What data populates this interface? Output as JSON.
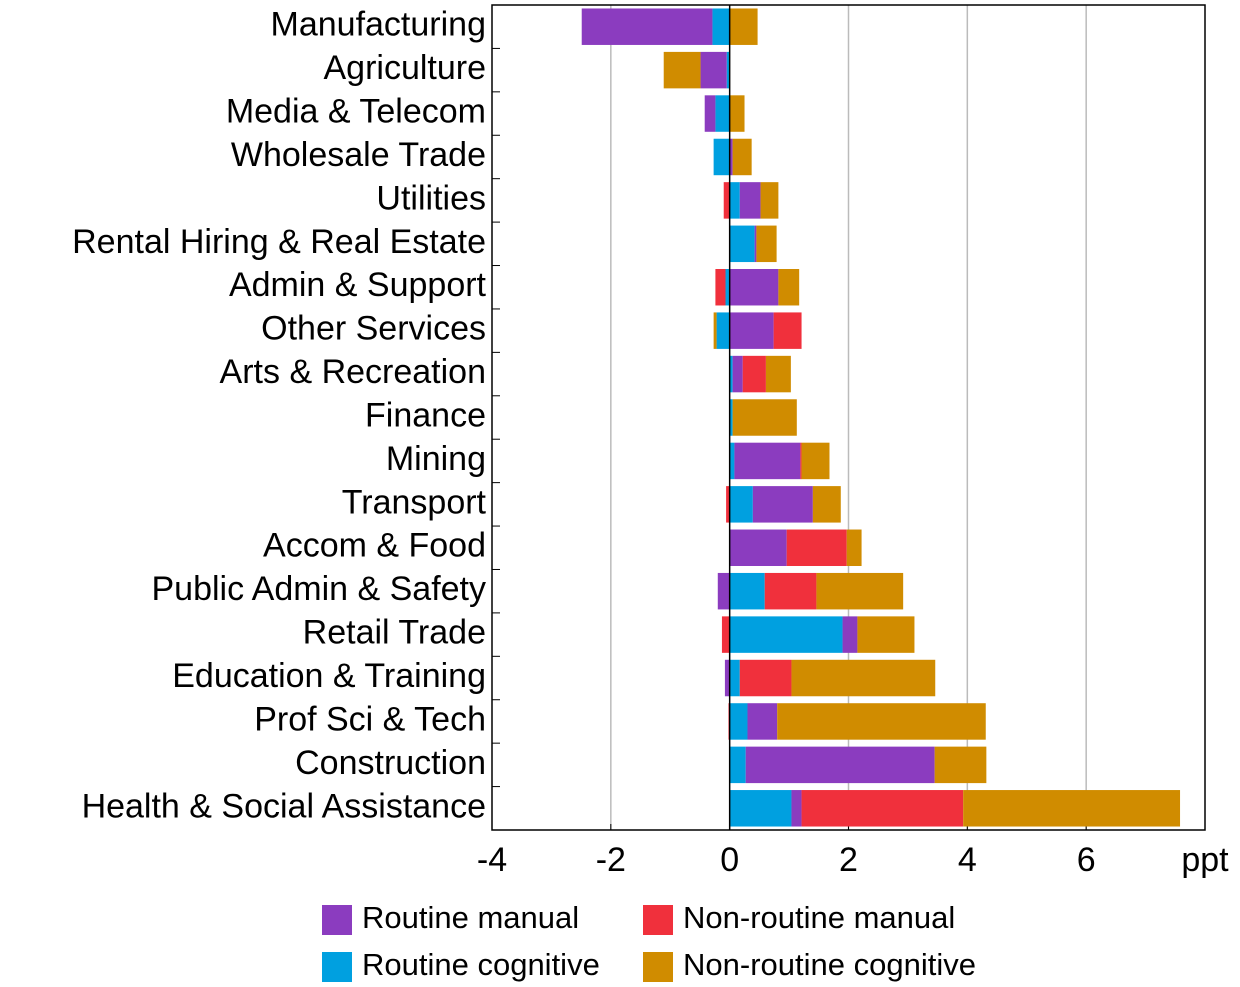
{
  "chart_data": {
    "type": "stacked_bar_horizontal",
    "categories": [
      "Manufacturing",
      "Agriculture",
      "Media & Telecom",
      "Wholesale Trade",
      "Utilities",
      "Rental Hiring & Real Estate",
      "Admin & Support",
      "Other Services",
      "Arts & Recreation",
      "Finance",
      "Mining",
      "Transport",
      "Accom & Food",
      "Public Admin & Safety",
      "Retail Trade",
      "Education & Training",
      "Prof Sci & Tech",
      "Construction",
      "Health & Social Assistance"
    ],
    "series": [
      {
        "name": "Routine cognitive",
        "color": "#00a0e0",
        "values": [
          -0.29,
          -0.05,
          -0.24,
          -0.27,
          0.17,
          0.42,
          -0.07,
          -0.22,
          0.05,
          0.05,
          0.08,
          0.39,
          0,
          0.59,
          1.9,
          0.17,
          0.3,
          0.27,
          1.04
        ]
      },
      {
        "name": "Routine manual",
        "color": "#8b3cbf",
        "values": [
          -2.2,
          -0.44,
          -0.18,
          0.05,
          0.35,
          0.03,
          0.82,
          0.74,
          0.17,
          0,
          1.11,
          1.01,
          0.96,
          -0.2,
          0.25,
          -0.08,
          0.5,
          3.18,
          0.17
        ]
      },
      {
        "name": "Non-routine manual",
        "color": "#f0303c",
        "values": [
          0,
          0,
          0,
          0,
          -0.1,
          0,
          -0.17,
          0.47,
          0.39,
          0,
          0.02,
          -0.06,
          1.01,
          0.87,
          -0.13,
          0.87,
          -0.02,
          0,
          2.72
        ]
      },
      {
        "name": "Non-routine cognitive",
        "color": "#d08c00",
        "values": [
          0.47,
          -0.62,
          0.25,
          0.32,
          0.3,
          0.34,
          0.35,
          -0.05,
          0.42,
          1.08,
          0.47,
          0.47,
          0.25,
          1.46,
          0.96,
          2.42,
          3.51,
          0.87,
          3.65
        ]
      }
    ],
    "xlim": [
      -4,
      8
    ],
    "xticks": [
      -4,
      -2,
      0,
      2,
      4,
      6,
      {
        "value": 8,
        "label": "ppt"
      }
    ],
    "grid": true
  }
}
